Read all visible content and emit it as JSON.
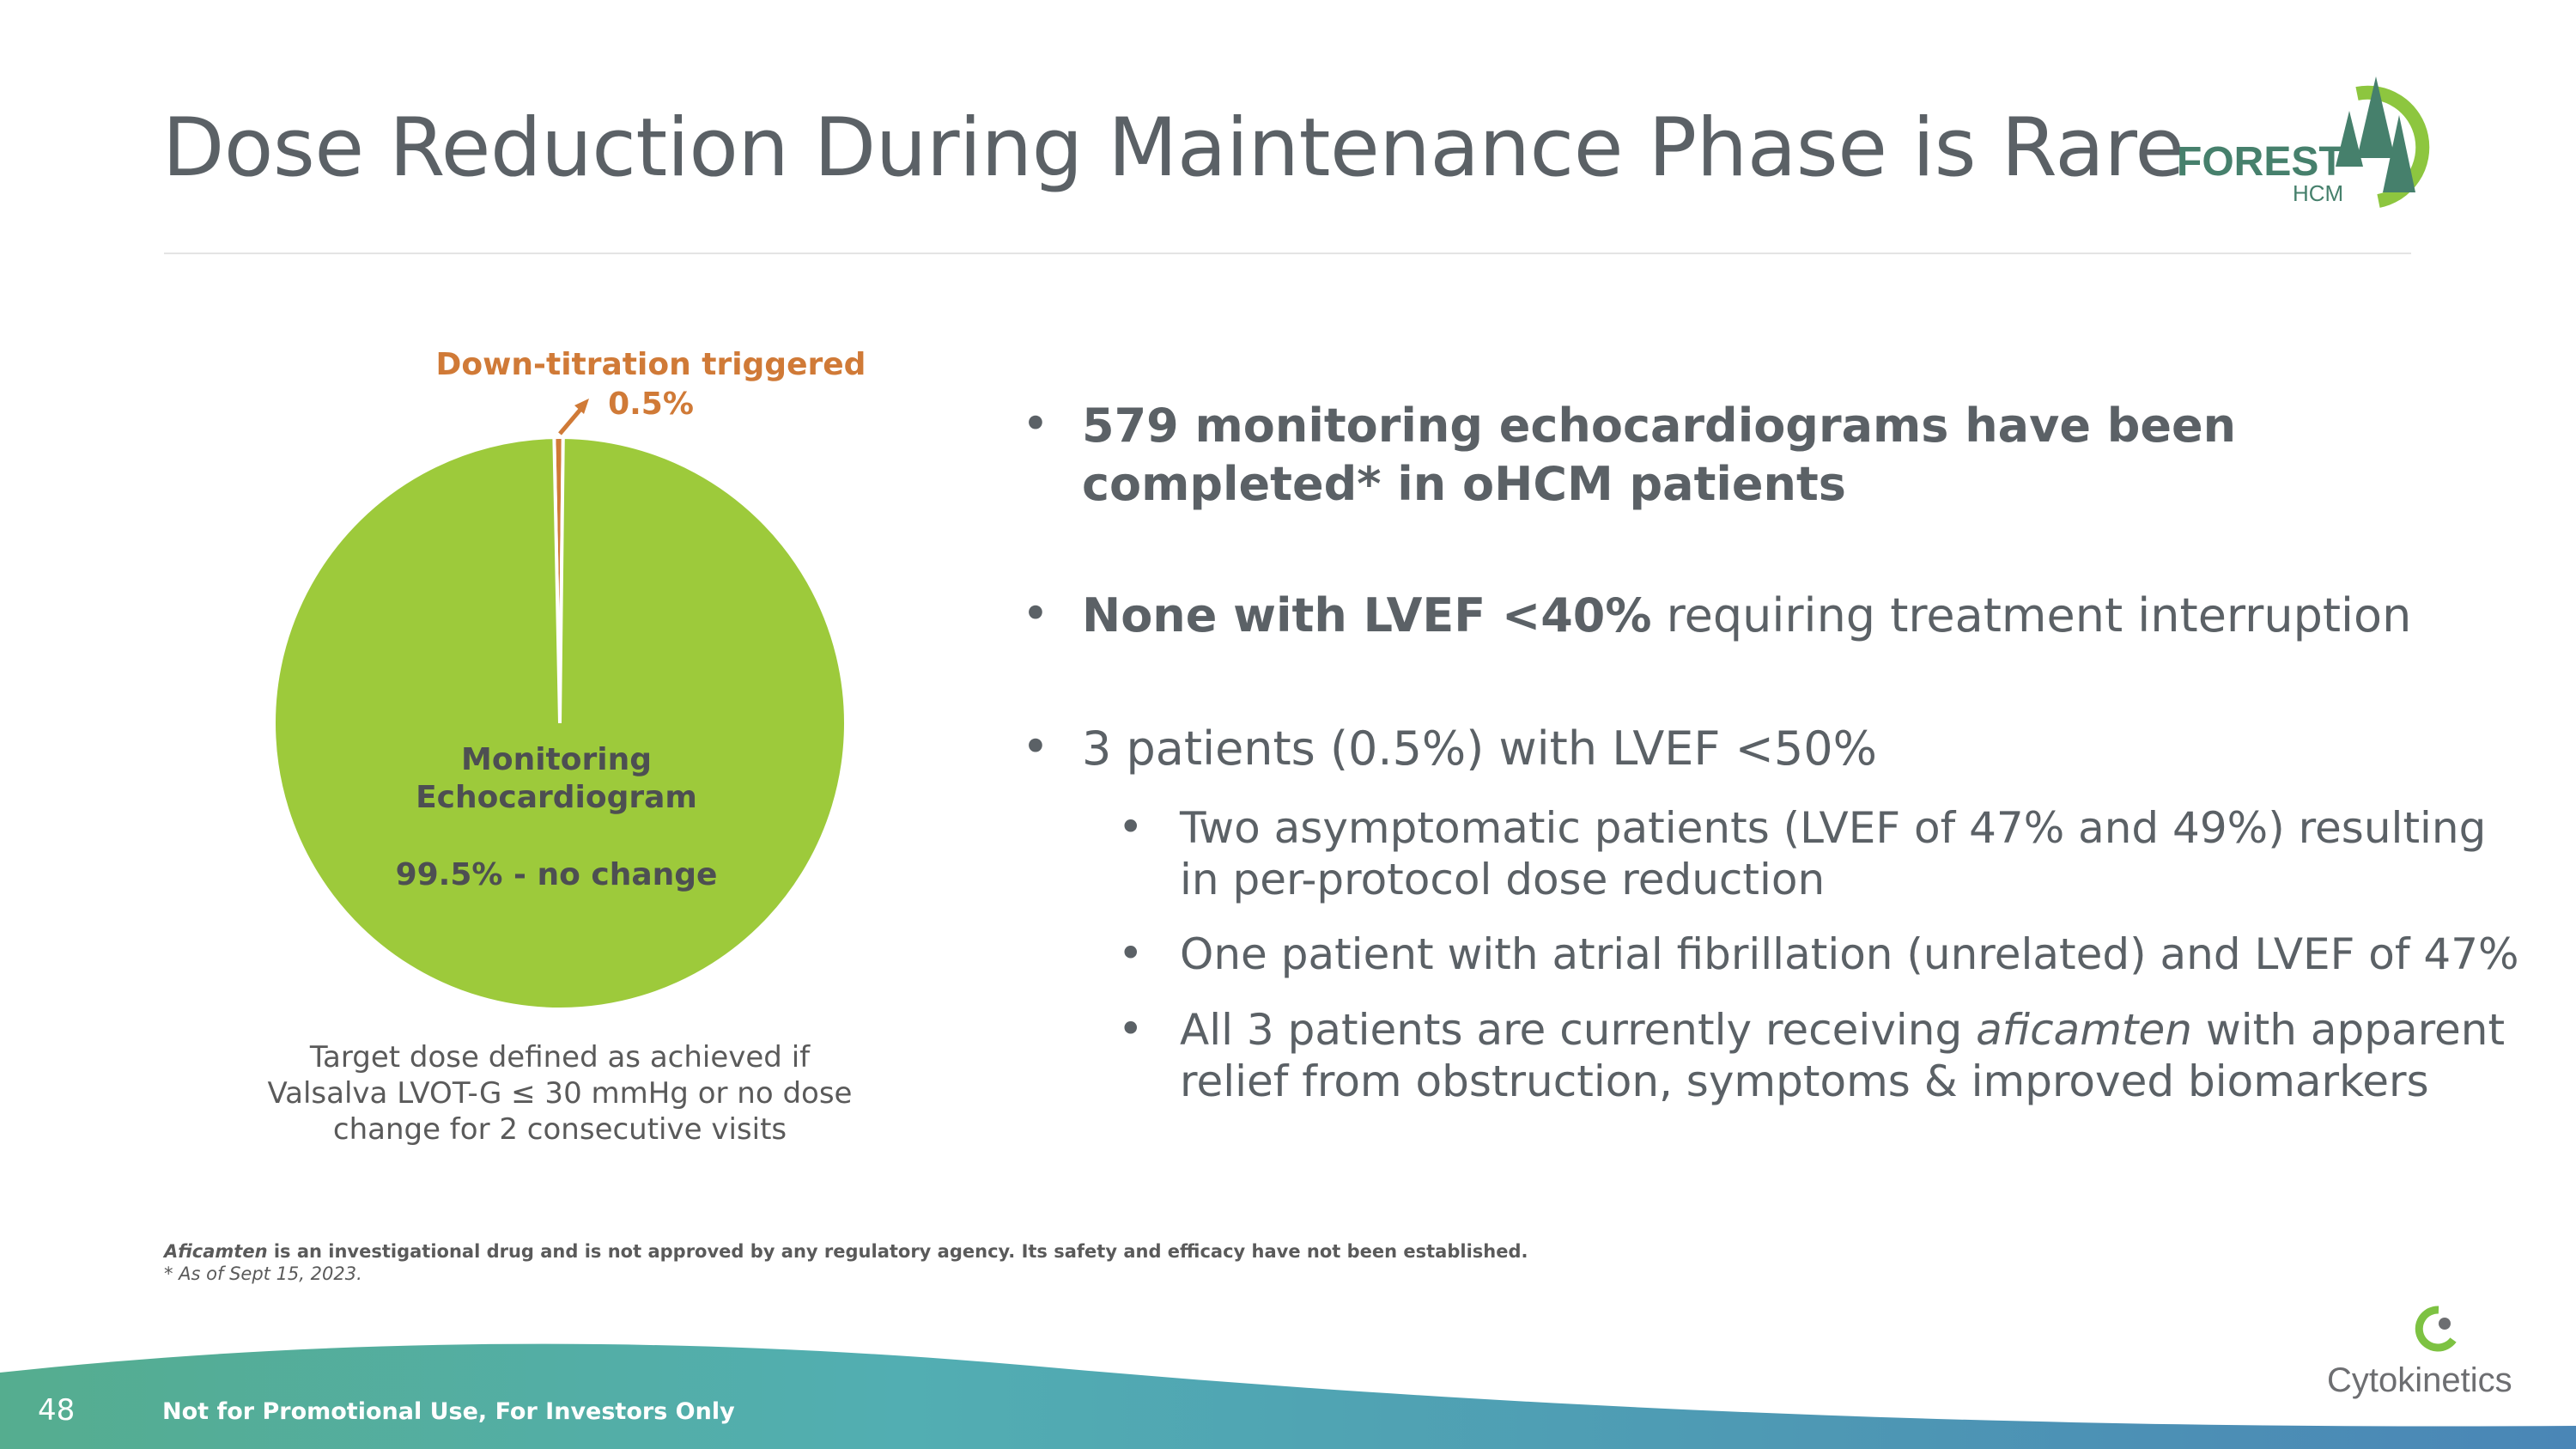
{
  "header": {
    "title": "Dose Reduction During Maintenance Phase is Rare",
    "logo": {
      "word": "FOREST",
      "sub": "HCM"
    }
  },
  "chart_data": {
    "type": "pie",
    "title": "",
    "slices": [
      {
        "label": "Down-titration triggered",
        "value": 0.5,
        "value_label": "0.5%",
        "color": "#d07a37"
      },
      {
        "label": "Monitoring Echocardiogram",
        "value": 99.5,
        "value_label": "99.5% - no change",
        "color": "#9dca3b"
      }
    ],
    "center_label_lines": [
      "Monitoring",
      "Echocardiogram"
    ],
    "caption_lines": [
      "Target dose defined as achieved if",
      "Valsalva LVOT-G ≤ 30 mmHg or no dose",
      "change for 2 consecutive visits"
    ]
  },
  "bullets": {
    "marker": "•",
    "b1_line1": "579 monitoring echocardiograms have been",
    "b1_line2": "completed* in oHCM patients",
    "b2_bold": "None with LVEF <40%",
    "b2_rest": " requiring treatment interruption",
    "b3": "3 patients (0.5%) with LVEF <50%",
    "s1_line1": "Two asymptomatic patients (LVEF of 47% and 49%) resulting",
    "s1_line2": "in per-protocol dose reduction",
    "s2": "One patient with atrial fibrillation (unrelated) and LVEF of 47%",
    "s3_pre": "All 3 patients are currently receiving ",
    "s3_italic": "aficamten",
    "s3_post": " with apparent",
    "s3_line2": "relief from obstruction, symptoms & improved biomarkers"
  },
  "footnotes": {
    "drug": "Aficamten",
    "disclaimer": " is an investigational drug and is not approved by any regulatory agency. Its safety and efficacy have not been established.",
    "asof": "* As of Sept 15, 2023."
  },
  "footer": {
    "page_number": "48",
    "note": "Not for Promotional Use, For Investors Only",
    "company": "Cytokinetics"
  }
}
